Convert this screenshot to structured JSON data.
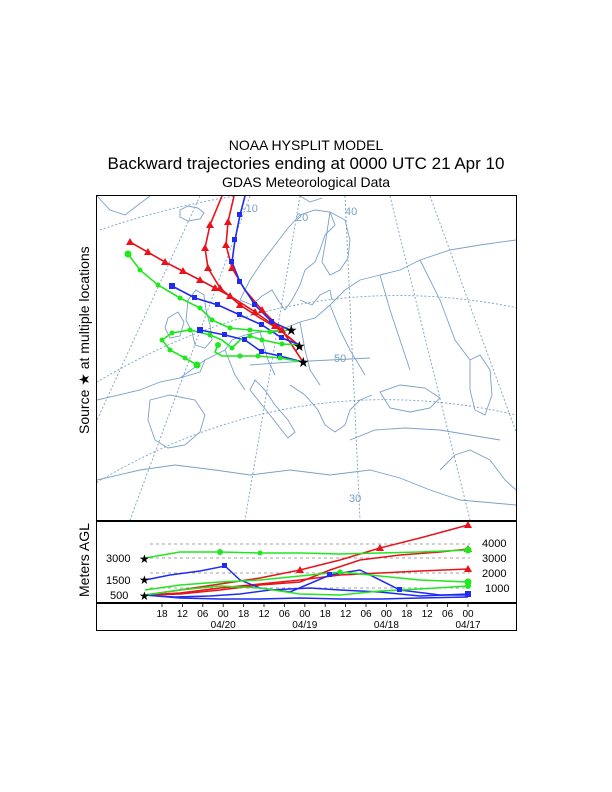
{
  "title": {
    "line1": "NOAA HYSPLIT MODEL",
    "line2": "Backward trajectories ending at 0000 UTC 21 Apr 10",
    "line3": "GDAS Meteorological Data"
  },
  "map": {
    "side_label_text": "Source",
    "side_label_symbol": "★",
    "side_label_suffix": "at multiple locations",
    "lat_labels": [
      "20",
      "40",
      "50",
      "30"
    ],
    "lon_labels": [
      "-10"
    ],
    "colors": {
      "red": "#e8121a",
      "blue": "#1f2cf0",
      "green": "#1fe81f",
      "coast": "#7aa0c8",
      "grid": "#7aa0c8"
    }
  },
  "height_panel": {
    "ylabel": "Meters AGL",
    "left_ticks": [
      "3000",
      "1500",
      "500"
    ],
    "right_ticks": [
      "4000",
      "3000",
      "2000",
      "1000"
    ],
    "hour_labels": [
      "18",
      "12",
      "06",
      "00",
      "18",
      "12",
      "06",
      "00",
      "18",
      "12",
      "06",
      "00",
      "18",
      "12",
      "06",
      "00"
    ],
    "date_labels": [
      "04/20",
      "04/19",
      "04/18",
      "04/17"
    ]
  }
}
